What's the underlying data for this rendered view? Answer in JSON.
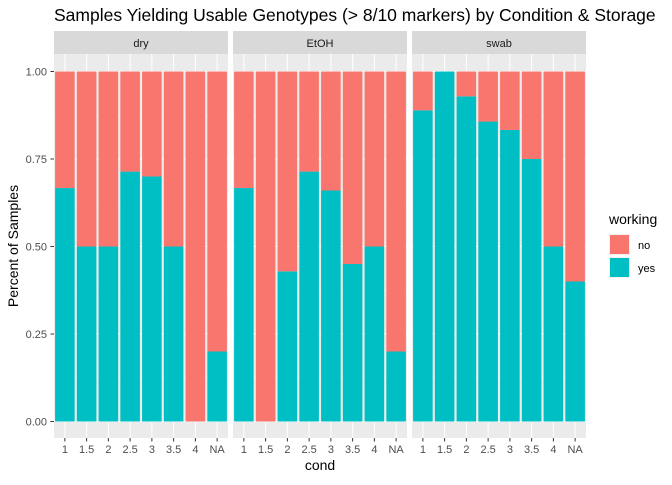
{
  "chart_data": {
    "type": "bar",
    "stacked": true,
    "title": "Samples Yielding Usable Genotypes (> 8/10 markers) by Condition & Storage",
    "xlabel": "cond",
    "ylabel": "Percent of Samples",
    "ylim": [
      0,
      1
    ],
    "y_ticks": [
      "0.00",
      "0.25",
      "0.50",
      "0.75",
      "1.00"
    ],
    "categories": [
      "1",
      "1.5",
      "2",
      "2.5",
      "3",
      "3.5",
      "4",
      "NA"
    ],
    "legend": {
      "title": "working",
      "placement": "right",
      "entries": [
        {
          "label": "no",
          "color": "#F8766D"
        },
        {
          "label": "yes",
          "color": "#00BFC4"
        }
      ]
    },
    "colors": {
      "panel_bg": "#EBEBEB",
      "grid": "#FFFFFF",
      "strip_bg": "#D9D9D9"
    },
    "facets": [
      {
        "label": "dry",
        "series": [
          {
            "name": "yes",
            "values": [
              0.667,
              0.5,
              0.5,
              0.714,
              0.7,
              0.5,
              0.0,
              0.2
            ]
          },
          {
            "name": "no",
            "values": [
              0.333,
              0.5,
              0.5,
              0.286,
              0.3,
              0.5,
              1.0,
              0.8
            ]
          }
        ]
      },
      {
        "label": "EtOH",
        "series": [
          {
            "name": "yes",
            "values": [
              0.667,
              0.0,
              0.429,
              0.714,
              0.66,
              0.45,
              0.5,
              0.2
            ]
          },
          {
            "name": "no",
            "values": [
              0.333,
              1.0,
              0.571,
              0.286,
              0.34,
              0.55,
              0.5,
              0.8
            ]
          }
        ]
      },
      {
        "label": "swab",
        "series": [
          {
            "name": "yes",
            "values": [
              0.889,
              1.0,
              0.929,
              0.857,
              0.833,
              0.75,
              0.5,
              0.4
            ]
          },
          {
            "name": "no",
            "values": [
              0.111,
              0.0,
              0.071,
              0.143,
              0.167,
              0.25,
              0.5,
              0.6
            ]
          }
        ]
      }
    ]
  }
}
